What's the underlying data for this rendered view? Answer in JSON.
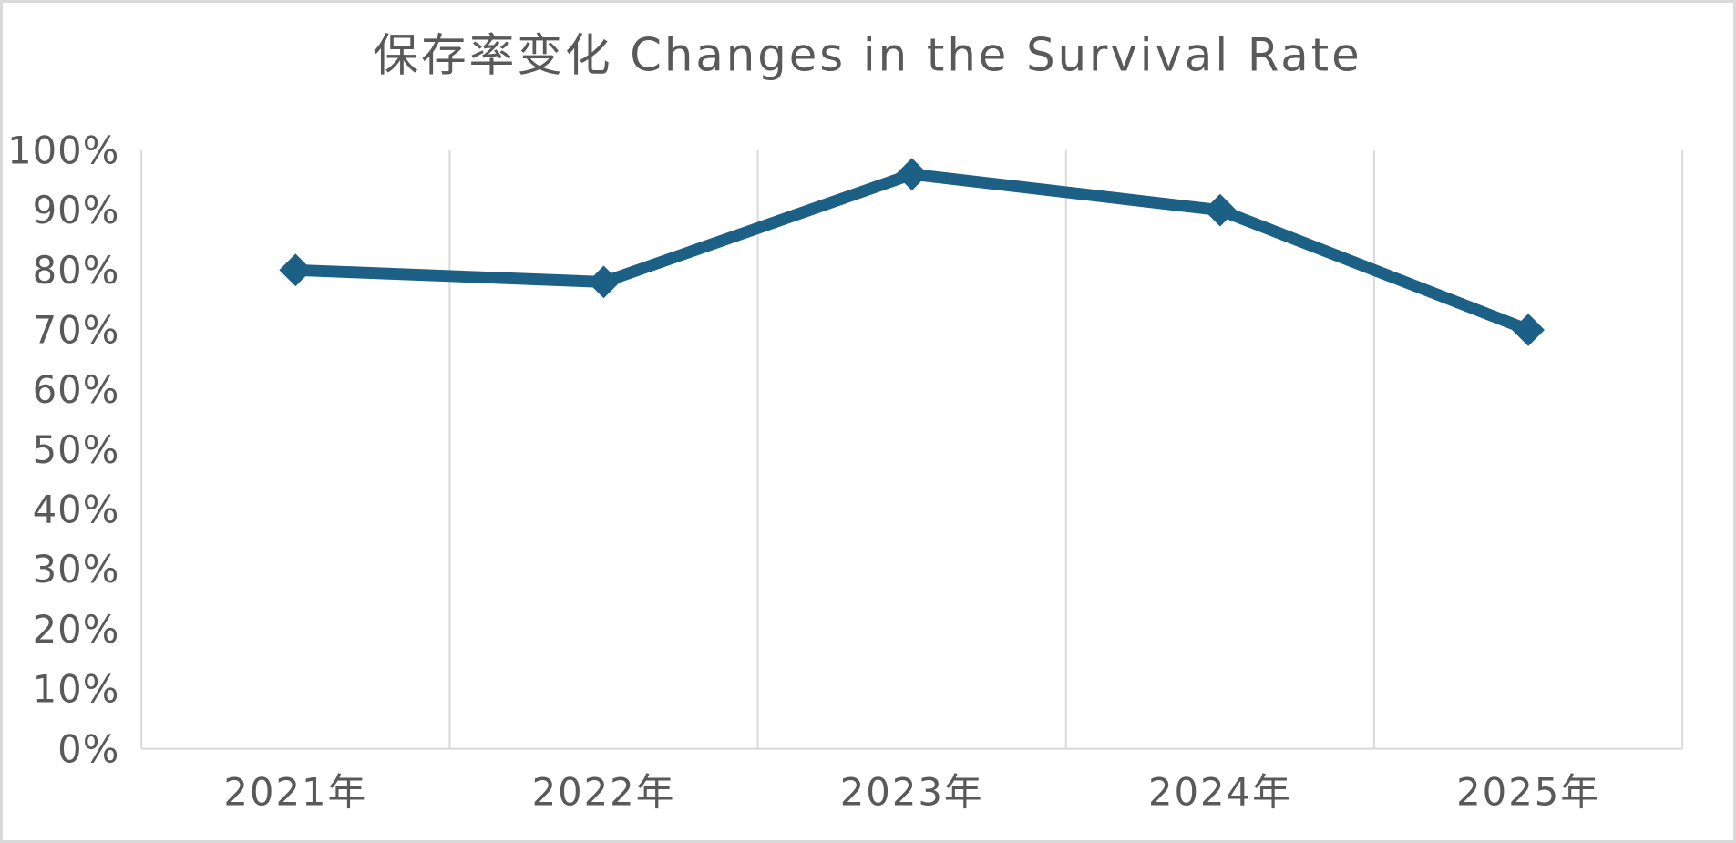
{
  "frame": {
    "background_color": "#ffffff",
    "border_color": "#d9d9d9"
  },
  "chart_data": {
    "type": "line",
    "title": "保存率变化 Changes in the Survival Rate",
    "categories": [
      "2021年",
      "2022年",
      "2023年",
      "2024年",
      "2025年"
    ],
    "values": [
      80,
      78,
      96,
      90,
      70
    ],
    "unit": "%",
    "xlabel": "",
    "ylabel": "",
    "ylim": [
      0,
      100
    ],
    "ytick_step": 10,
    "ytick_labels": [
      "0%",
      "10%",
      "20%",
      "30%",
      "40%",
      "50%",
      "60%",
      "70%",
      "80%",
      "90%",
      "100%"
    ],
    "legend": "none",
    "grid": "vertical-only",
    "marker": "diamond",
    "colors": {
      "line": "#1d6085",
      "marker": "#1d6085",
      "gridline": "#d9d9d9",
      "axis_line": "#d9d9d9",
      "tick_text": "#595959",
      "title_text": "#595959"
    }
  }
}
